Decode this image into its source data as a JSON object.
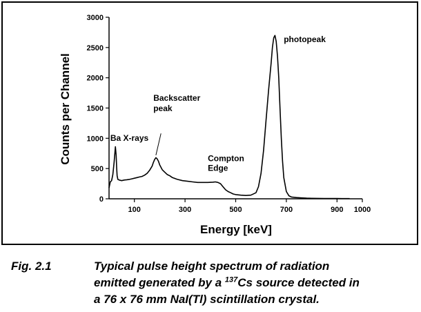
{
  "chart_data": {
    "type": "line",
    "title": "",
    "xlabel": "Energy [keV]",
    "ylabel": "Counts per Channel",
    "xlim": [
      0,
      1000
    ],
    "ylim": [
      0,
      3000
    ],
    "x_ticks": [
      100,
      300,
      500,
      700,
      900,
      1000
    ],
    "y_ticks": [
      0,
      500,
      1000,
      1500,
      2000,
      2500,
      3000
    ],
    "grid": false,
    "series": [
      {
        "x": [
          0,
          5,
          10,
          15,
          20,
          25,
          28,
          30,
          32,
          35,
          40,
          50,
          60,
          70,
          80,
          90,
          100,
          110,
          120,
          130,
          140,
          150,
          160,
          170,
          175,
          180,
          185,
          190,
          195,
          200,
          210,
          220,
          230,
          240,
          250,
          270,
          290,
          310,
          330,
          350,
          370,
          390,
          410,
          420,
          430,
          440,
          450,
          460,
          470,
          480,
          490,
          500,
          520,
          540,
          560,
          580,
          590,
          600,
          610,
          620,
          630,
          640,
          645,
          650,
          655,
          660,
          665,
          670,
          675,
          680,
          685,
          690,
          700,
          710,
          720,
          740,
          760,
          780,
          800,
          850,
          900,
          920,
          940,
          950
        ],
        "y": [
          180,
          280,
          300,
          400,
          600,
          860,
          720,
          520,
          380,
          320,
          310,
          300,
          310,
          315,
          320,
          330,
          340,
          350,
          360,
          370,
          390,
          420,
          470,
          540,
          600,
          650,
          680,
          660,
          620,
          560,
          480,
          440,
          400,
          380,
          350,
          320,
          300,
          290,
          280,
          270,
          270,
          270,
          275,
          280,
          270,
          250,
          200,
          150,
          120,
          100,
          80,
          70,
          60,
          55,
          60,
          100,
          200,
          420,
          800,
          1300,
          1800,
          2250,
          2500,
          2660,
          2700,
          2600,
          2350,
          2000,
          1500,
          1000,
          620,
          350,
          120,
          50,
          30,
          20,
          15,
          10,
          8,
          5,
          4,
          3,
          3,
          3
        ]
      }
    ],
    "annotations": [
      {
        "text": "photopeak",
        "x": 690,
        "y": 2590
      },
      {
        "text": "Backscatter",
        "x": 175,
        "y": 1620
      },
      {
        "text": "peak",
        "x": 175,
        "y": 1450
      },
      {
        "text": "Ba X-rays",
        "x": 5,
        "y": 960
      },
      {
        "text": "Compton",
        "x": 390,
        "y": 620
      },
      {
        "text": "Edge",
        "x": 390,
        "y": 460
      }
    ]
  },
  "caption": {
    "label": "Fig. 2.1",
    "line1": "Typical pulse height spectrum of radiation",
    "line2_pre": "emitted generated by a ",
    "line2_sup": "137",
    "line2_post": "Cs source detected in",
    "line3": "a 76 x 76 mm NaI(Tl) scintillation crystal."
  }
}
